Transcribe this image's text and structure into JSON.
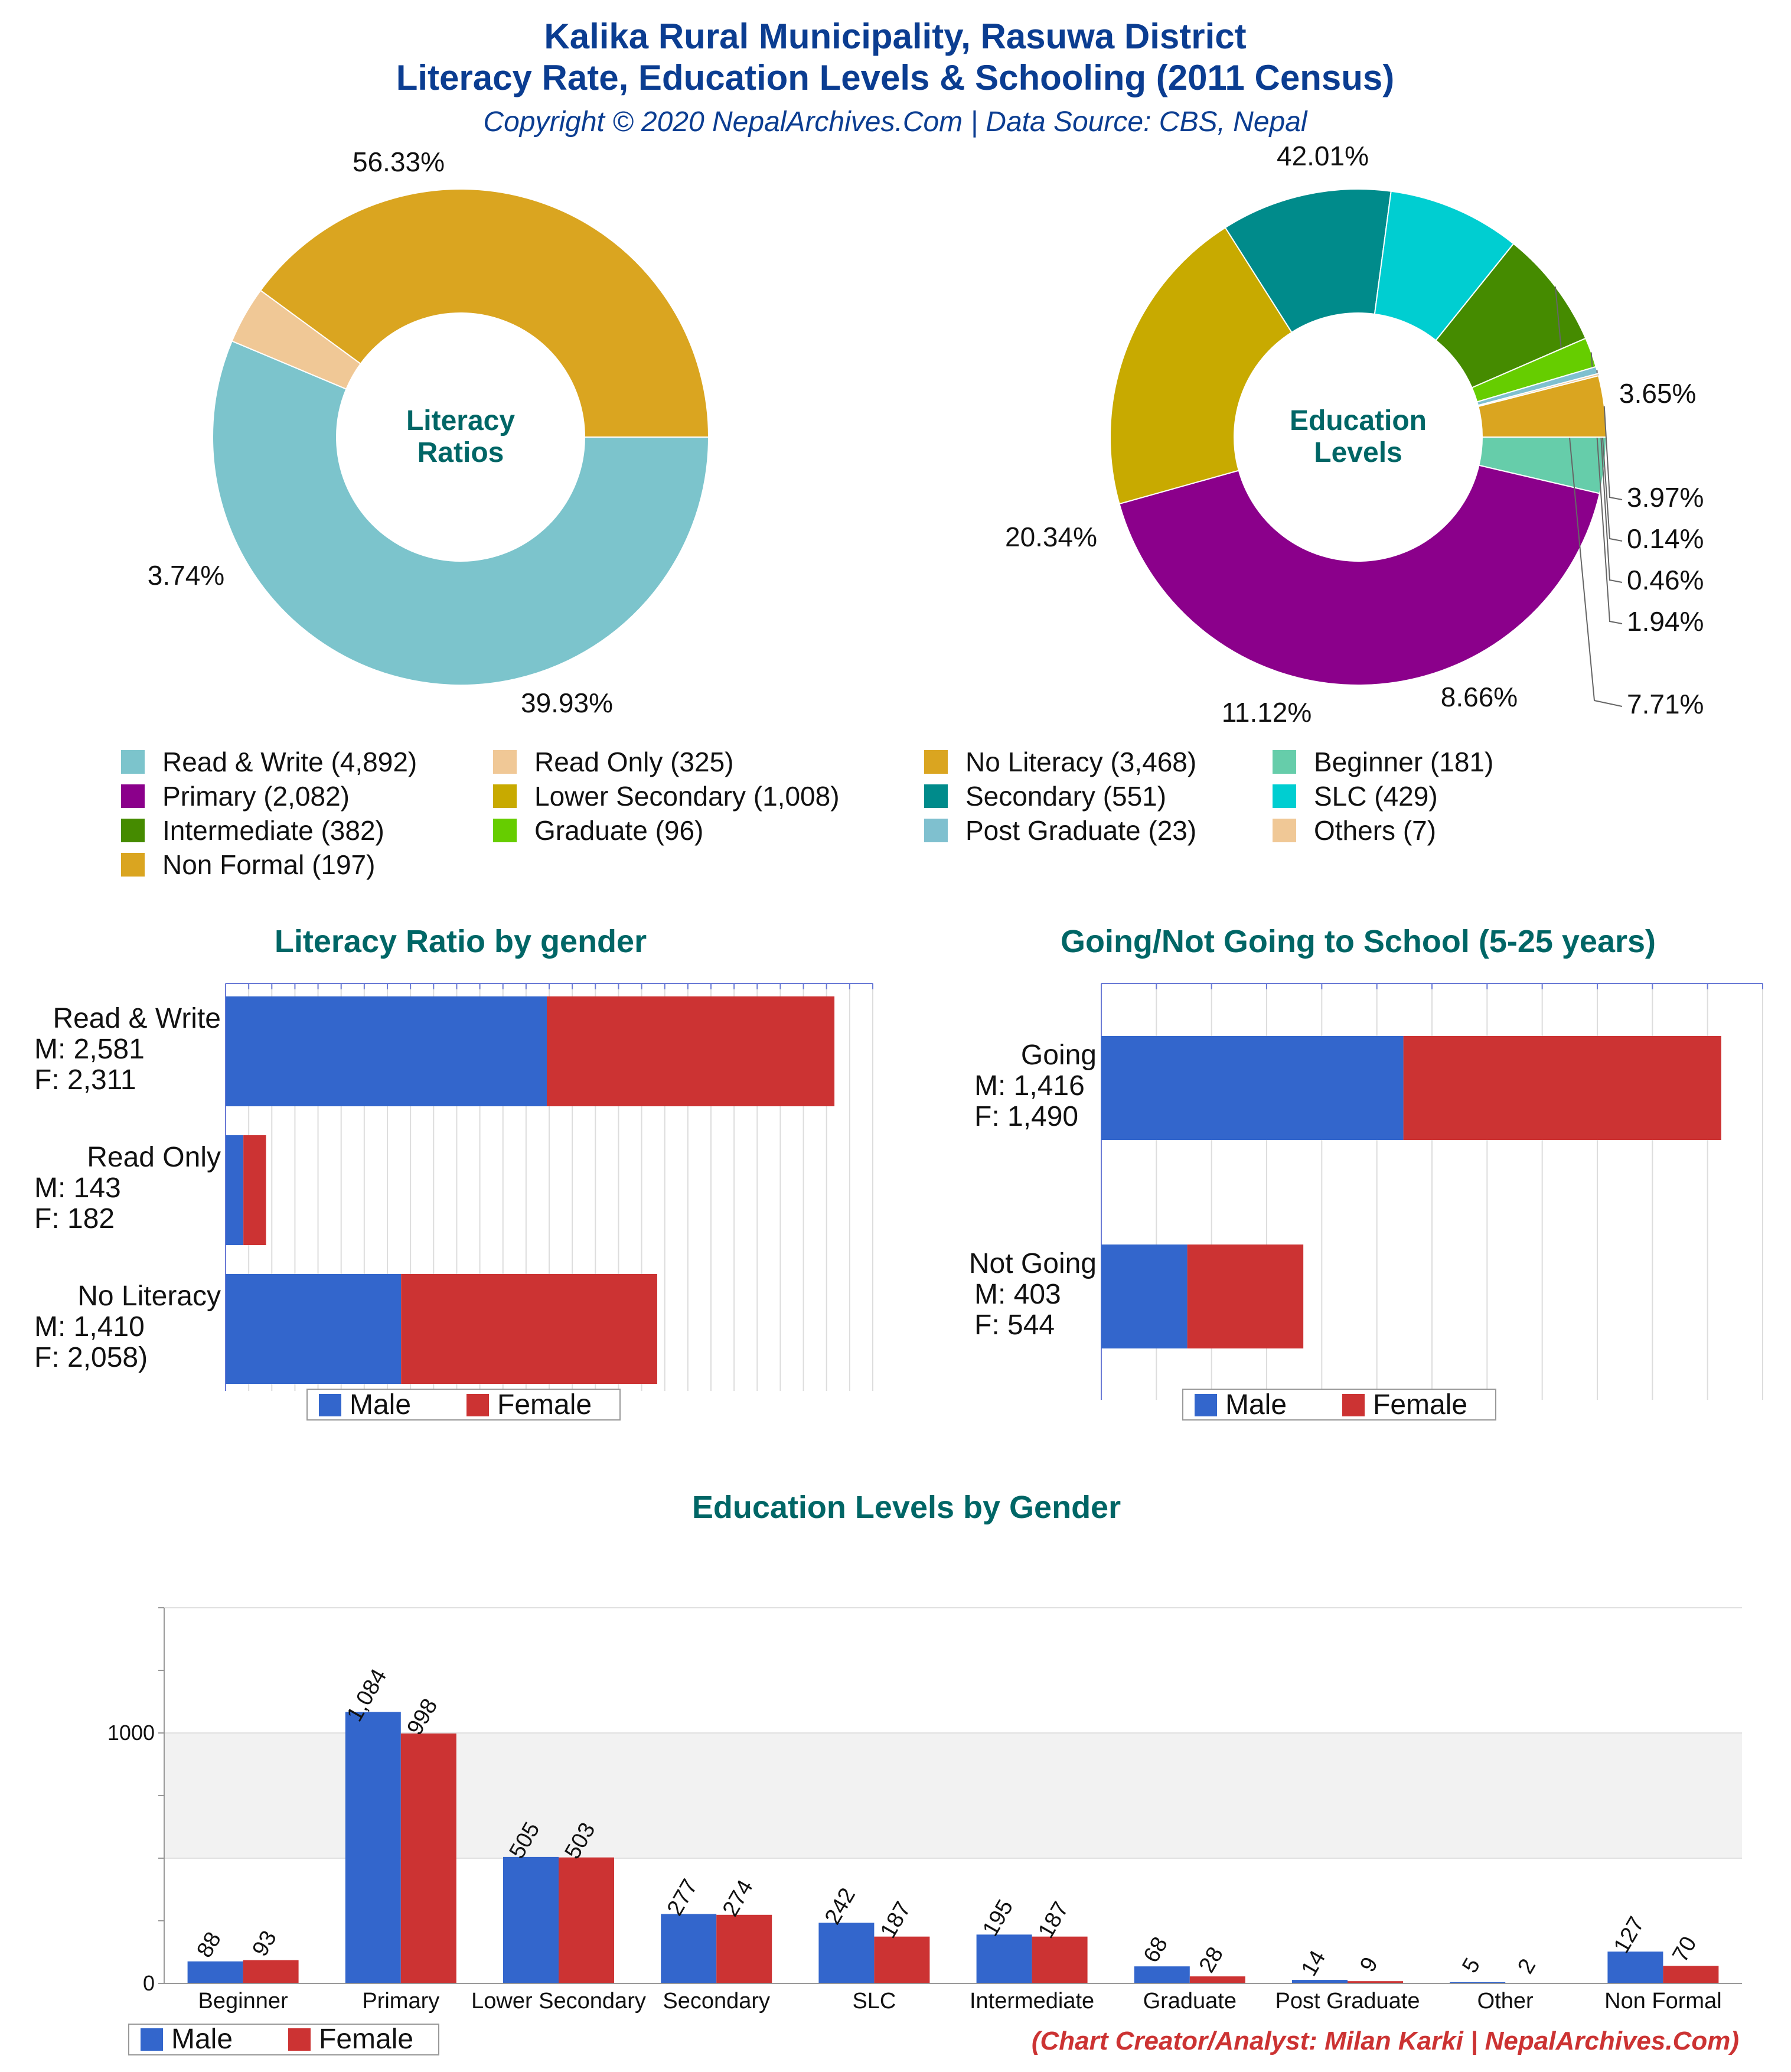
{
  "header": {
    "title_line1": "Kalika Rural Municipality, Rasuwa District",
    "title_line2": "Literacy Rate, Education Levels & Schooling (2011 Census)",
    "copyright": "Copyright © 2020 NepalArchives.Com | Data Source: CBS, Nepal"
  },
  "footer": {
    "credit": "(Chart Creator/Analyst: Milan Karki | NepalArchives.Com)"
  },
  "colors": {
    "title": "#0b3d91",
    "section_title": "#006666",
    "male": "#3366cc",
    "female": "#cc3333",
    "credit": "#cc3333"
  },
  "chart_data": [
    {
      "id": "literacy-ratios",
      "type": "pie",
      "center_label": [
        "Literacy",
        "Ratios"
      ],
      "slices": [
        {
          "label": "Read & Write",
          "value": 4892,
          "percent_label": "56.33%",
          "color": "#7cc4cc"
        },
        {
          "label": "Read Only",
          "value": 325,
          "percent_label": "3.74%",
          "color": "#f0c896"
        },
        {
          "label": "No Literacy",
          "value": 3468,
          "percent_label": "39.93%",
          "color": "#daa520"
        }
      ]
    },
    {
      "id": "education-levels",
      "type": "pie",
      "center_label": [
        "Education",
        "Levels"
      ],
      "slices": [
        {
          "label": "Beginner",
          "value": 181,
          "percent_label": "3.65%",
          "color": "#66cdaa"
        },
        {
          "label": "Primary",
          "value": 2082,
          "percent_label": "42.01%",
          "color": "#8b008b"
        },
        {
          "label": "Lower Secondary",
          "value": 1008,
          "percent_label": "20.34%",
          "color": "#c8aa00"
        },
        {
          "label": "Secondary",
          "value": 551,
          "percent_label": "11.12%",
          "color": "#008b8b"
        },
        {
          "label": "SLC",
          "value": 429,
          "percent_label": "8.66%",
          "color": "#00ced1"
        },
        {
          "label": "Intermediate",
          "value": 382,
          "percent_label": "7.71%",
          "color": "#458b00"
        },
        {
          "label": "Graduate",
          "value": 96,
          "percent_label": "1.94%",
          "color": "#66cd00"
        },
        {
          "label": "Post Graduate",
          "value": 23,
          "percent_label": "0.46%",
          "color": "#7fc0cf"
        },
        {
          "label": "Others",
          "value": 7,
          "percent_label": "0.14%",
          "color": "#f0c896"
        },
        {
          "label": "Non Formal",
          "value": 197,
          "percent_label": "3.97%",
          "color": "#daa520"
        }
      ]
    },
    {
      "id": "pie-legend",
      "type": "table",
      "rows": [
        [
          {
            "label": "Read & Write (4,892)",
            "color": "#7cc4cc"
          },
          {
            "label": "Read Only (325)",
            "color": "#f0c896"
          },
          {
            "label": "No Literacy (3,468)",
            "color": "#daa520"
          },
          {
            "label": "Beginner (181)",
            "color": "#66cdaa"
          }
        ],
        [
          {
            "label": "Primary (2,082)",
            "color": "#8b008b"
          },
          {
            "label": "Lower Secondary (1,008)",
            "color": "#c8aa00"
          },
          {
            "label": "Secondary (551)",
            "color": "#008b8b"
          },
          {
            "label": "SLC (429)",
            "color": "#00ced1"
          }
        ],
        [
          {
            "label": "Intermediate (382)",
            "color": "#458b00"
          },
          {
            "label": "Graduate (96)",
            "color": "#66cd00"
          },
          {
            "label": "Post Graduate (23)",
            "color": "#7fc0cf"
          },
          {
            "label": "Others (7)",
            "color": "#f0c896"
          }
        ],
        [
          {
            "label": "Non Formal (197)",
            "color": "#daa520"
          }
        ]
      ]
    },
    {
      "id": "literacy-by-gender",
      "type": "bar",
      "orientation": "horizontal",
      "stacked": true,
      "title": "Literacy Ratio by gender",
      "xlim": [
        0,
        5200
      ],
      "categories": [
        {
          "lines": [
            "Read & Write",
            "M: 2,581",
            "F: 2,311"
          ]
        },
        {
          "lines": [
            "Read Only",
            "M: 143",
            "F: 182"
          ]
        },
        {
          "lines": [
            "No Literacy",
            "M: 1,410",
            "F: 2,058)"
          ]
        }
      ],
      "series": [
        {
          "name": "Male",
          "values": [
            2581,
            143,
            1410
          ]
        },
        {
          "name": "Female",
          "values": [
            2311,
            182,
            2058
          ]
        }
      ],
      "legend": {
        "position": "bottom-center",
        "labels": [
          "Male",
          "Female"
        ]
      }
    },
    {
      "id": "schooling-by-gender",
      "type": "bar",
      "orientation": "horizontal",
      "stacked": true,
      "title": "Going/Not Going to School (5-25 years)",
      "xlim": [
        0,
        3100
      ],
      "categories": [
        {
          "lines": [
            "Going",
            "M: 1,416",
            "F: 1,490"
          ]
        },
        {
          "lines": [
            "Not Going",
            "M: 403",
            "F: 544"
          ]
        }
      ],
      "series": [
        {
          "name": "Male",
          "values": [
            1416,
            403
          ]
        },
        {
          "name": "Female",
          "values": [
            1490,
            544
          ]
        }
      ],
      "legend": {
        "position": "bottom-center",
        "labels": [
          "Male",
          "Female"
        ]
      }
    },
    {
      "id": "education-by-gender",
      "type": "bar",
      "orientation": "vertical",
      "title": "Education Levels by Gender",
      "ylim": [
        0,
        1500
      ],
      "yticks": [
        0,
        1000
      ],
      "categories": [
        "Beginner",
        "Primary",
        "Lower Secondary",
        "Secondary",
        "SLC",
        "Intermediate",
        "Graduate",
        "Post Graduate",
        "Other",
        "Non Formal"
      ],
      "series": [
        {
          "name": "Male",
          "values": [
            88,
            1084,
            505,
            277,
            242,
            195,
            68,
            14,
            5,
            127
          ],
          "labels": [
            "88",
            "1,084",
            "505",
            "277",
            "242",
            "195",
            "68",
            "14",
            "5",
            "127"
          ]
        },
        {
          "name": "Female",
          "values": [
            93,
            998,
            503,
            274,
            187,
            187,
            28,
            9,
            2,
            70
          ],
          "labels": [
            "93",
            "998",
            "503",
            "274",
            "187",
            "187",
            "28",
            "9",
            "2",
            "70"
          ]
        }
      ],
      "legend": {
        "position": "bottom-left",
        "labels": [
          "Male",
          "Female"
        ]
      }
    }
  ]
}
